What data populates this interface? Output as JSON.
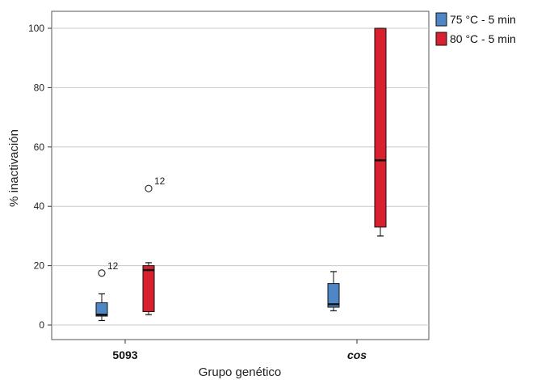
{
  "chart_data": {
    "type": "boxplot",
    "xlabel": "Grupo genético",
    "ylabel": "% inactivación",
    "ylim": [
      0,
      100
    ],
    "yticks": [
      0,
      20,
      40,
      60,
      80,
      100
    ],
    "categories": [
      {
        "label": "5093",
        "italic": false
      },
      {
        "label": "cos",
        "italic": true
      }
    ],
    "grid": true,
    "legend_position": "top-right",
    "series": [
      {
        "name": "75 °C - 5 min",
        "color": "#4f86c6",
        "boxes": [
          {
            "min": 1.5,
            "q1": 3.0,
            "median": 3.5,
            "q3": 7.5,
            "max": 10.5,
            "outliers": [
              {
                "value": 17.5,
                "label": "12"
              }
            ]
          },
          {
            "min": 4.8,
            "q1": 6.0,
            "median": 7.0,
            "q3": 14.0,
            "max": 18.0,
            "outliers": []
          }
        ]
      },
      {
        "name": "80 °C - 5 min",
        "color": "#d8202f",
        "boxes": [
          {
            "min": 3.5,
            "q1": 4.5,
            "median": 18.5,
            "q3": 20.0,
            "max": 21.0,
            "outliers": [
              {
                "value": 46.0,
                "label": "12"
              }
            ]
          },
          {
            "min": 30.0,
            "q1": 33.0,
            "median": 55.5,
            "q3": 100.0,
            "max": 100.0,
            "outliers": []
          }
        ]
      }
    ]
  }
}
